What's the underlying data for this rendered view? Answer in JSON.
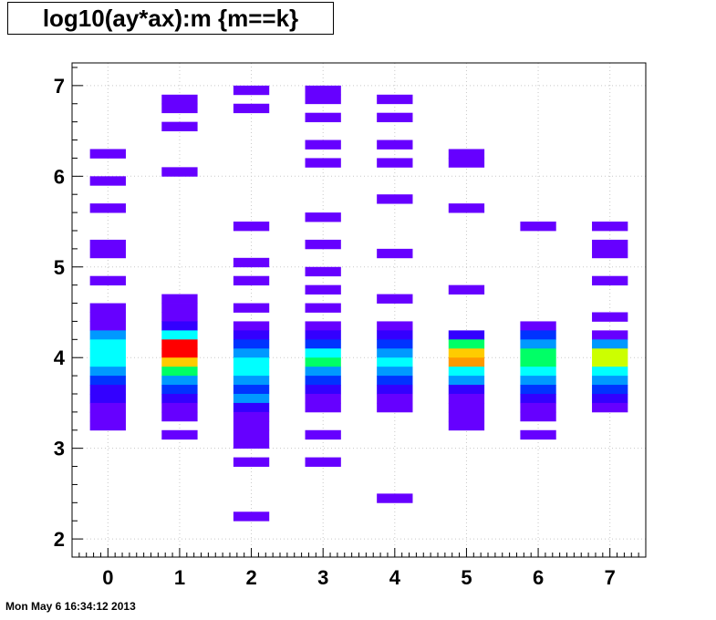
{
  "chart_data": {
    "type": "heatmap",
    "title": "log10(ay*ax):m {m==k}",
    "xlabel": "",
    "ylabel": "",
    "x_range": [
      -0.5,
      7.5
    ],
    "y_range": [
      1.8,
      7.25
    ],
    "x_ticks": [
      "0",
      "1",
      "2",
      "3",
      "4",
      "5",
      "6",
      "7"
    ],
    "y_ticks": [
      "2",
      "3",
      "4",
      "5",
      "6",
      "7"
    ],
    "grid": true,
    "bin_height": 0.1,
    "palette": [
      "#6600ff",
      "#3300ff",
      "#0033ff",
      "#0099ff",
      "#00ffff",
      "#00ff66",
      "#ccff00",
      "#ffcc00",
      "#ff9900",
      "#ff0000"
    ],
    "columns": [
      {
        "x": 0,
        "cells": [
          [
            6.25,
            0
          ],
          [
            5.95,
            0
          ],
          [
            5.65,
            0
          ],
          [
            5.25,
            0
          ],
          [
            5.15,
            0
          ],
          [
            4.85,
            0
          ],
          [
            4.55,
            0
          ],
          [
            4.45,
            0
          ],
          [
            4.35,
            0
          ],
          [
            4.25,
            3
          ],
          [
            4.15,
            4
          ],
          [
            4.05,
            4
          ],
          [
            3.95,
            4
          ],
          [
            3.85,
            3
          ],
          [
            3.75,
            2
          ],
          [
            3.65,
            1
          ],
          [
            3.55,
            1
          ],
          [
            3.45,
            0
          ],
          [
            3.35,
            0
          ],
          [
            3.25,
            0
          ]
        ]
      },
      {
        "x": 1,
        "cells": [
          [
            6.85,
            0
          ],
          [
            6.75,
            0
          ],
          [
            6.55,
            0
          ],
          [
            6.05,
            0
          ],
          [
            4.65,
            0
          ],
          [
            4.55,
            0
          ],
          [
            4.45,
            0
          ],
          [
            4.35,
            1
          ],
          [
            4.25,
            4
          ],
          [
            4.15,
            9
          ],
          [
            4.05,
            9
          ],
          [
            3.95,
            7
          ],
          [
            3.85,
            5
          ],
          [
            3.75,
            3
          ],
          [
            3.65,
            2
          ],
          [
            3.55,
            1
          ],
          [
            3.45,
            0
          ],
          [
            3.35,
            0
          ],
          [
            3.15,
            0
          ]
        ]
      },
      {
        "x": 2,
        "cells": [
          [
            6.95,
            0
          ],
          [
            6.75,
            0
          ],
          [
            5.45,
            0
          ],
          [
            5.05,
            0
          ],
          [
            4.85,
            0
          ],
          [
            4.55,
            0
          ],
          [
            4.35,
            0
          ],
          [
            4.25,
            1
          ],
          [
            4.15,
            2
          ],
          [
            4.05,
            3
          ],
          [
            3.95,
            4
          ],
          [
            3.85,
            4
          ],
          [
            3.75,
            3
          ],
          [
            3.65,
            2
          ],
          [
            3.55,
            3
          ],
          [
            3.45,
            1
          ],
          [
            3.35,
            0
          ],
          [
            3.25,
            0
          ],
          [
            3.15,
            0
          ],
          [
            3.05,
            0
          ],
          [
            2.85,
            0
          ],
          [
            2.25,
            0
          ]
        ]
      },
      {
        "x": 3,
        "cells": [
          [
            6.95,
            0
          ],
          [
            6.85,
            0
          ],
          [
            6.65,
            0
          ],
          [
            6.35,
            0
          ],
          [
            6.15,
            0
          ],
          [
            5.55,
            0
          ],
          [
            5.25,
            0
          ],
          [
            4.95,
            0
          ],
          [
            4.75,
            0
          ],
          [
            4.55,
            0
          ],
          [
            4.35,
            0
          ],
          [
            4.25,
            1
          ],
          [
            4.15,
            2
          ],
          [
            4.05,
            4
          ],
          [
            3.95,
            5
          ],
          [
            3.85,
            3
          ],
          [
            3.75,
            2
          ],
          [
            3.65,
            1
          ],
          [
            3.55,
            0
          ],
          [
            3.45,
            0
          ],
          [
            3.15,
            0
          ],
          [
            2.85,
            0
          ]
        ]
      },
      {
        "x": 4,
        "cells": [
          [
            6.85,
            0
          ],
          [
            6.65,
            0
          ],
          [
            6.35,
            0
          ],
          [
            6.15,
            0
          ],
          [
            5.75,
            0
          ],
          [
            5.15,
            0
          ],
          [
            4.65,
            0
          ],
          [
            4.35,
            0
          ],
          [
            4.25,
            1
          ],
          [
            4.15,
            2
          ],
          [
            4.05,
            3
          ],
          [
            3.95,
            4
          ],
          [
            3.85,
            3
          ],
          [
            3.75,
            2
          ],
          [
            3.65,
            1
          ],
          [
            3.55,
            0
          ],
          [
            3.45,
            0
          ],
          [
            2.45,
            0
          ]
        ]
      },
      {
        "x": 5,
        "cells": [
          [
            6.25,
            0
          ],
          [
            6.15,
            0
          ],
          [
            5.65,
            0
          ],
          [
            4.75,
            0
          ],
          [
            4.25,
            1
          ],
          [
            4.15,
            5
          ],
          [
            4.05,
            7
          ],
          [
            3.95,
            8
          ],
          [
            3.85,
            4
          ],
          [
            3.75,
            3
          ],
          [
            3.65,
            1
          ],
          [
            3.55,
            0
          ],
          [
            3.45,
            0
          ],
          [
            3.35,
            0
          ],
          [
            3.25,
            0
          ]
        ]
      },
      {
        "x": 6,
        "cells": [
          [
            5.45,
            0
          ],
          [
            4.35,
            0
          ],
          [
            4.25,
            2
          ],
          [
            4.15,
            3
          ],
          [
            4.05,
            5
          ],
          [
            3.95,
            5
          ],
          [
            3.85,
            4
          ],
          [
            3.75,
            3
          ],
          [
            3.65,
            2
          ],
          [
            3.55,
            1
          ],
          [
            3.45,
            0
          ],
          [
            3.35,
            0
          ],
          [
            3.15,
            0
          ]
        ]
      },
      {
        "x": 7,
        "cells": [
          [
            5.45,
            0
          ],
          [
            5.25,
            0
          ],
          [
            5.15,
            0
          ],
          [
            4.85,
            0
          ],
          [
            4.45,
            0
          ],
          [
            4.25,
            0
          ],
          [
            4.15,
            3
          ],
          [
            4.05,
            6
          ],
          [
            3.95,
            6
          ],
          [
            3.85,
            4
          ],
          [
            3.75,
            3
          ],
          [
            3.65,
            2
          ],
          [
            3.55,
            1
          ],
          [
            3.45,
            0
          ]
        ]
      }
    ]
  },
  "footer": {
    "timestamp": "Mon May  6 16:34:12 2013"
  }
}
